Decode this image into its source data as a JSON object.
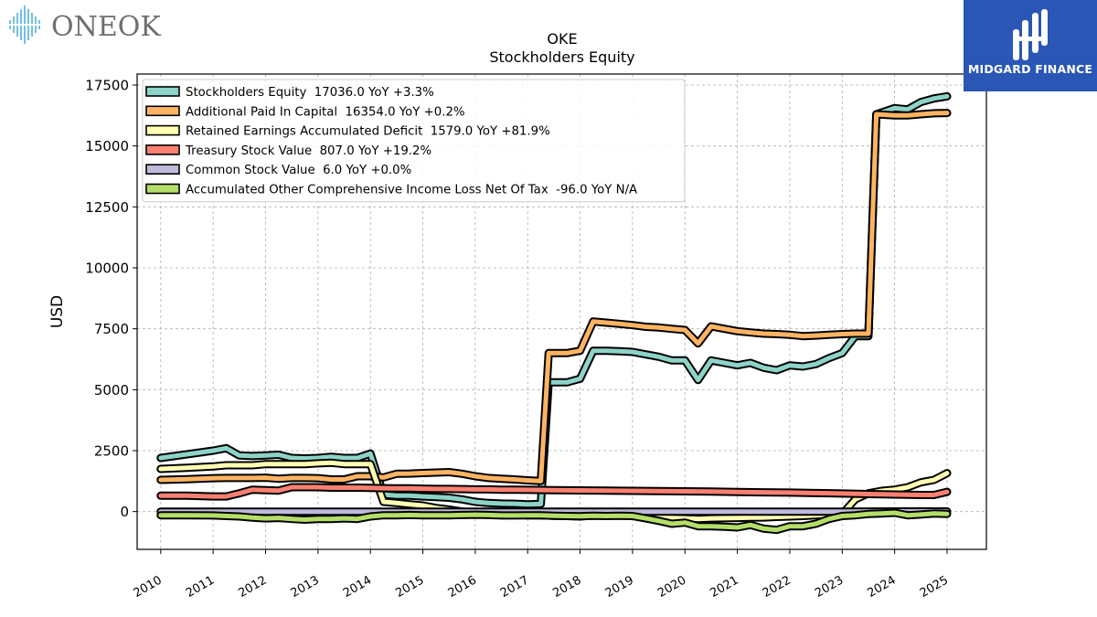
{
  "logos": {
    "left_brand": "ONEOK",
    "right_brand": "MIDGARD FINANCE"
  },
  "chart_data": {
    "type": "line",
    "title": "OKE",
    "subtitle": "Stockholders  Equity",
    "xlabel": "",
    "ylabel": "USD",
    "xlim": [
      2009.55,
      2025.75
    ],
    "ylim": [
      -1550,
      17950
    ],
    "yticks": [
      0,
      2500,
      5000,
      7500,
      10000,
      12500,
      15000,
      17500
    ],
    "xticks": [
      2010,
      2011,
      2012,
      2013,
      2014,
      2015,
      2016,
      2017,
      2018,
      2019,
      2020,
      2021,
      2022,
      2023,
      2024,
      2025
    ],
    "grid": true,
    "legend_position": "top-left",
    "series": [
      {
        "name": "Stockholders Equity  17036.0 YoY +3.3%",
        "color": "#8dd3c7",
        "points": [
          [
            2010.0,
            2200
          ],
          [
            2010.5,
            2350
          ],
          [
            2011.0,
            2500
          ],
          [
            2011.25,
            2600
          ],
          [
            2011.5,
            2300
          ],
          [
            2011.75,
            2280
          ],
          [
            2012.0,
            2300
          ],
          [
            2012.25,
            2330
          ],
          [
            2012.5,
            2200
          ],
          [
            2012.75,
            2180
          ],
          [
            2013.0,
            2200
          ],
          [
            2013.25,
            2250
          ],
          [
            2013.5,
            2200
          ],
          [
            2013.75,
            2200
          ],
          [
            2014.0,
            2380
          ],
          [
            2014.25,
            700
          ],
          [
            2014.5,
            650
          ],
          [
            2014.75,
            650
          ],
          [
            2015.0,
            620
          ],
          [
            2015.25,
            600
          ],
          [
            2015.5,
            570
          ],
          [
            2015.75,
            500
          ],
          [
            2016.0,
            400
          ],
          [
            2016.25,
            350
          ],
          [
            2016.5,
            330
          ],
          [
            2016.75,
            320
          ],
          [
            2017.0,
            300
          ],
          [
            2017.25,
            310
          ],
          [
            2017.4,
            5300
          ],
          [
            2017.75,
            5300
          ],
          [
            2018.0,
            5450
          ],
          [
            2018.25,
            6600
          ],
          [
            2018.5,
            6600
          ],
          [
            2018.75,
            6580
          ],
          [
            2019.0,
            6550
          ],
          [
            2019.25,
            6450
          ],
          [
            2019.5,
            6350
          ],
          [
            2019.75,
            6200
          ],
          [
            2020.0,
            6200
          ],
          [
            2020.25,
            5400
          ],
          [
            2020.5,
            6200
          ],
          [
            2020.75,
            6100
          ],
          [
            2021.0,
            6000
          ],
          [
            2021.25,
            6100
          ],
          [
            2021.5,
            5900
          ],
          [
            2021.75,
            5800
          ],
          [
            2022.0,
            6000
          ],
          [
            2022.25,
            5950
          ],
          [
            2022.5,
            6050
          ],
          [
            2022.75,
            6300
          ],
          [
            2023.0,
            6500
          ],
          [
            2023.25,
            7200
          ],
          [
            2023.5,
            7200
          ],
          [
            2023.65,
            16300
          ],
          [
            2024.0,
            16550
          ],
          [
            2024.25,
            16500
          ],
          [
            2024.5,
            16800
          ],
          [
            2024.75,
            16950
          ],
          [
            2025.0,
            17036
          ]
        ]
      },
      {
        "name": "Additional Paid In Capital  16354.0 YoY +0.2%",
        "color": "#fdb462",
        "points": [
          [
            2010.0,
            1300
          ],
          [
            2010.5,
            1330
          ],
          [
            2011.0,
            1370
          ],
          [
            2011.25,
            1380
          ],
          [
            2011.5,
            1380
          ],
          [
            2011.75,
            1380
          ],
          [
            2012.0,
            1390
          ],
          [
            2012.25,
            1350
          ],
          [
            2012.5,
            1380
          ],
          [
            2012.75,
            1380
          ],
          [
            2013.0,
            1370
          ],
          [
            2013.25,
            1320
          ],
          [
            2013.5,
            1320
          ],
          [
            2013.75,
            1450
          ],
          [
            2014.0,
            1450
          ],
          [
            2014.25,
            1400
          ],
          [
            2014.5,
            1550
          ],
          [
            2014.75,
            1560
          ],
          [
            2015.0,
            1580
          ],
          [
            2015.25,
            1600
          ],
          [
            2015.5,
            1620
          ],
          [
            2015.75,
            1550
          ],
          [
            2016.0,
            1450
          ],
          [
            2016.25,
            1380
          ],
          [
            2016.5,
            1350
          ],
          [
            2016.75,
            1320
          ],
          [
            2017.0,
            1280
          ],
          [
            2017.25,
            1250
          ],
          [
            2017.4,
            6500
          ],
          [
            2017.75,
            6500
          ],
          [
            2018.0,
            6600
          ],
          [
            2018.25,
            7800
          ],
          [
            2018.5,
            7750
          ],
          [
            2018.75,
            7700
          ],
          [
            2019.0,
            7650
          ],
          [
            2019.25,
            7580
          ],
          [
            2019.5,
            7550
          ],
          [
            2019.75,
            7500
          ],
          [
            2020.0,
            7450
          ],
          [
            2020.25,
            6900
          ],
          [
            2020.5,
            7600
          ],
          [
            2020.75,
            7500
          ],
          [
            2021.0,
            7400
          ],
          [
            2021.25,
            7350
          ],
          [
            2021.5,
            7300
          ],
          [
            2021.75,
            7280
          ],
          [
            2022.0,
            7250
          ],
          [
            2022.25,
            7200
          ],
          [
            2022.5,
            7220
          ],
          [
            2022.75,
            7250
          ],
          [
            2023.0,
            7280
          ],
          [
            2023.25,
            7300
          ],
          [
            2023.5,
            7300
          ],
          [
            2023.65,
            16300
          ],
          [
            2024.0,
            16250
          ],
          [
            2024.25,
            16250
          ],
          [
            2024.5,
            16300
          ],
          [
            2024.75,
            16340
          ],
          [
            2025.0,
            16354
          ]
        ]
      },
      {
        "name": "Retained Earnings Accumulated Deficit  1579.0 YoY +81.9%",
        "color": "#ffffb3",
        "points": [
          [
            2010.0,
            1750
          ],
          [
            2010.5,
            1800
          ],
          [
            2011.0,
            1850
          ],
          [
            2011.25,
            1900
          ],
          [
            2011.5,
            1900
          ],
          [
            2011.75,
            1900
          ],
          [
            2012.0,
            1950
          ],
          [
            2012.25,
            1950
          ],
          [
            2012.5,
            1950
          ],
          [
            2012.75,
            1950
          ],
          [
            2013.0,
            1980
          ],
          [
            2013.25,
            2000
          ],
          [
            2013.5,
            1950
          ],
          [
            2013.75,
            1950
          ],
          [
            2014.0,
            1950
          ],
          [
            2014.25,
            400
          ],
          [
            2014.5,
            350
          ],
          [
            2014.75,
            300
          ],
          [
            2015.0,
            250
          ],
          [
            2015.25,
            150
          ],
          [
            2015.5,
            80
          ],
          [
            2015.75,
            0
          ],
          [
            2016.0,
            -50
          ],
          [
            2016.25,
            -80
          ],
          [
            2016.5,
            -100
          ],
          [
            2016.75,
            -120
          ],
          [
            2017.0,
            -150
          ],
          [
            2017.25,
            -150
          ],
          [
            2017.5,
            -170
          ],
          [
            2017.75,
            -180
          ],
          [
            2018.0,
            -200
          ],
          [
            2018.25,
            -150
          ],
          [
            2018.5,
            -150
          ],
          [
            2018.75,
            -160
          ],
          [
            2019.0,
            -170
          ],
          [
            2019.25,
            -200
          ],
          [
            2019.5,
            -230
          ],
          [
            2019.75,
            -260
          ],
          [
            2020.0,
            -280
          ],
          [
            2020.25,
            -300
          ],
          [
            2020.5,
            -280
          ],
          [
            2020.75,
            -270
          ],
          [
            2021.0,
            -260
          ],
          [
            2021.25,
            -250
          ],
          [
            2021.5,
            -240
          ],
          [
            2021.75,
            -220
          ],
          [
            2022.0,
            -200
          ],
          [
            2022.25,
            -180
          ],
          [
            2022.5,
            -150
          ],
          [
            2022.75,
            -120
          ],
          [
            2023.0,
            -100
          ],
          [
            2023.25,
            500
          ],
          [
            2023.5,
            750
          ],
          [
            2023.75,
            850
          ],
          [
            2024.0,
            900
          ],
          [
            2024.25,
            1000
          ],
          [
            2024.5,
            1200
          ],
          [
            2024.75,
            1300
          ],
          [
            2025.0,
            1579
          ]
        ]
      },
      {
        "name": "Treasury Stock Value  807.0 YoY +19.2%",
        "color": "#fb8072",
        "points": [
          [
            2010.0,
            650
          ],
          [
            2010.5,
            650
          ],
          [
            2011.0,
            620
          ],
          [
            2011.25,
            620
          ],
          [
            2011.5,
            750
          ],
          [
            2011.75,
            900
          ],
          [
            2012.0,
            880
          ],
          [
            2012.25,
            860
          ],
          [
            2012.5,
            1000
          ],
          [
            2012.75,
            1000
          ],
          [
            2013.0,
            1000
          ],
          [
            2013.25,
            980
          ],
          [
            2013.5,
            980
          ],
          [
            2013.75,
            980
          ],
          [
            2014.0,
            970
          ],
          [
            2014.25,
            960
          ],
          [
            2014.5,
            950
          ],
          [
            2014.75,
            950
          ],
          [
            2015.0,
            940
          ],
          [
            2015.25,
            930
          ],
          [
            2015.5,
            930
          ],
          [
            2015.75,
            920
          ],
          [
            2016.0,
            910
          ],
          [
            2016.25,
            910
          ],
          [
            2016.5,
            900
          ],
          [
            2016.75,
            900
          ],
          [
            2017.0,
            890
          ],
          [
            2017.5,
            880
          ],
          [
            2018.0,
            870
          ],
          [
            2018.5,
            860
          ],
          [
            2019.0,
            850
          ],
          [
            2019.5,
            840
          ],
          [
            2020.0,
            830
          ],
          [
            2020.5,
            820
          ],
          [
            2021.0,
            800
          ],
          [
            2021.5,
            790
          ],
          [
            2022.0,
            780
          ],
          [
            2022.5,
            760
          ],
          [
            2023.0,
            740
          ],
          [
            2023.5,
            720
          ],
          [
            2024.0,
            700
          ],
          [
            2024.5,
            680
          ],
          [
            2024.75,
            680
          ],
          [
            2025.0,
            807
          ]
        ]
      },
      {
        "name": "Common Stock Value  6.0 YoY +0.0%",
        "color": "#bebada",
        "points": [
          [
            2010.0,
            0
          ],
          [
            2011.0,
            0
          ],
          [
            2012.0,
            0
          ],
          [
            2013.0,
            0
          ],
          [
            2014.0,
            0
          ],
          [
            2015.0,
            0
          ],
          [
            2016.0,
            0
          ],
          [
            2017.0,
            0
          ],
          [
            2018.0,
            0
          ],
          [
            2019.0,
            0
          ],
          [
            2020.0,
            0
          ],
          [
            2021.0,
            0
          ],
          [
            2022.0,
            0
          ],
          [
            2023.0,
            0
          ],
          [
            2024.0,
            6
          ],
          [
            2025.0,
            6
          ]
        ]
      },
      {
        "name": "Accumulated Other Comprehensive Income Loss Net Of Tax  -96.0 YoY N/A",
        "color": "#b3de69",
        "points": [
          [
            2010.0,
            -150
          ],
          [
            2010.5,
            -150
          ],
          [
            2011.0,
            -160
          ],
          [
            2011.25,
            -180
          ],
          [
            2011.5,
            -200
          ],
          [
            2011.75,
            -250
          ],
          [
            2012.0,
            -280
          ],
          [
            2012.25,
            -260
          ],
          [
            2012.5,
            -300
          ],
          [
            2012.75,
            -330
          ],
          [
            2013.0,
            -300
          ],
          [
            2013.25,
            -300
          ],
          [
            2013.5,
            -280
          ],
          [
            2013.75,
            -300
          ],
          [
            2014.0,
            -200
          ],
          [
            2014.25,
            -150
          ],
          [
            2014.5,
            -150
          ],
          [
            2014.75,
            -140
          ],
          [
            2015.0,
            -150
          ],
          [
            2015.25,
            -150
          ],
          [
            2015.5,
            -150
          ],
          [
            2015.75,
            -140
          ],
          [
            2016.0,
            -130
          ],
          [
            2016.25,
            -140
          ],
          [
            2016.5,
            -160
          ],
          [
            2016.75,
            -160
          ],
          [
            2017.0,
            -150
          ],
          [
            2017.25,
            -150
          ],
          [
            2017.5,
            -170
          ],
          [
            2017.75,
            -180
          ],
          [
            2018.0,
            -190
          ],
          [
            2018.25,
            -170
          ],
          [
            2018.5,
            -180
          ],
          [
            2018.75,
            -170
          ],
          [
            2019.0,
            -180
          ],
          [
            2019.25,
            -280
          ],
          [
            2019.5,
            -380
          ],
          [
            2019.75,
            -500
          ],
          [
            2020.0,
            -450
          ],
          [
            2020.25,
            -600
          ],
          [
            2020.5,
            -600
          ],
          [
            2020.75,
            -620
          ],
          [
            2021.0,
            -650
          ],
          [
            2021.25,
            -550
          ],
          [
            2021.5,
            -700
          ],
          [
            2021.75,
            -750
          ],
          [
            2022.0,
            -600
          ],
          [
            2022.25,
            -600
          ],
          [
            2022.5,
            -500
          ],
          [
            2022.75,
            -300
          ],
          [
            2023.0,
            -180
          ],
          [
            2023.25,
            -150
          ],
          [
            2023.5,
            -100
          ],
          [
            2023.75,
            -80
          ],
          [
            2024.0,
            -50
          ],
          [
            2024.25,
            -150
          ],
          [
            2024.5,
            -120
          ],
          [
            2024.75,
            -80
          ],
          [
            2025.0,
            -96
          ]
        ]
      }
    ]
  }
}
